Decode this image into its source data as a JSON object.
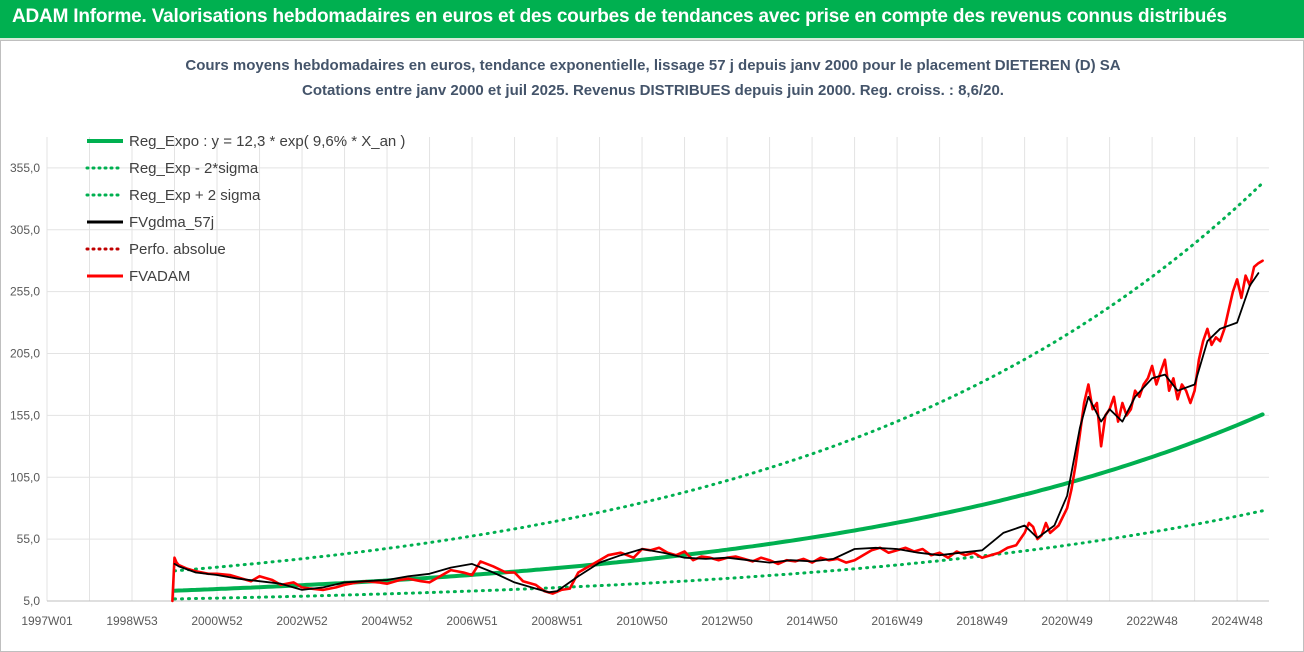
{
  "banner": {
    "text": "ADAM Informe. Valorisations hebdomadaires en euros et des courbes de tendances avec prise en compte des revenus connus distribués"
  },
  "chart_data": {
    "type": "line",
    "title": "Cours moyens hebdomadaires en euros, tendance exponentielle, lissage 57 j depuis janv 2000 pour le placement DIETEREN (D) SA",
    "subtitle": "Cotations entre janv 2000 et juil 2025. Revenus DISTRIBUES depuis juin 2000. Reg. croiss. : 8,6/20.",
    "ylim": [
      5,
      380
    ],
    "y_ticks": [
      "5,0",
      "55,0",
      "105,0",
      "155,0",
      "205,0",
      "255,0",
      "305,0",
      "355,0"
    ],
    "y_tick_values": [
      5,
      55,
      105,
      155,
      205,
      255,
      305,
      355
    ],
    "xlim": [
      1997.0,
      2025.75
    ],
    "x_ticks": [
      "1997W01",
      "1998W53",
      "2000W52",
      "2002W52",
      "2004W52",
      "2006W51",
      "2008W51",
      "2010W50",
      "2012W50",
      "2014W50",
      "2016W49",
      "2018W49",
      "2020W49",
      "2022W48",
      "2024W48"
    ],
    "x_tick_values": [
      1997.0,
      1999.0,
      2001.0,
      2003.0,
      2005.0,
      2007.0,
      2009.0,
      2011.0,
      2013.0,
      2015.0,
      2017.0,
      2019.0,
      2021.0,
      2023.0,
      2025.0
    ],
    "grid": true,
    "legend_position": "top-left",
    "exp_trend": {
      "a": 12.3,
      "rate": 0.096,
      "start": 2000.0,
      "end": 2025.6
    },
    "series": [
      {
        "name": "Reg_Expo : y = 12,3 * exp( 9,6% *  X_an )",
        "color": "#00b050",
        "style": "solid",
        "kind": "trend",
        "factor": 1.0
      },
      {
        "name": "Reg_Exp - 2*sigma",
        "color": "#00b050",
        "style": "dotted",
        "kind": "trend",
        "factor": 0.5
      },
      {
        "name": "Reg_Exp + 2 sigma",
        "color": "#00b050",
        "style": "dotted",
        "kind": "trend",
        "factor": 2.2
      },
      {
        "name": "FVgdma_57j",
        "color": "#000000",
        "style": "solid",
        "kind": "smooth",
        "x": [
          2000.0,
          2000.1,
          2000.5,
          2001.0,
          2001.5,
          2002.0,
          2002.5,
          2003.0,
          2003.5,
          2004.0,
          2004.5,
          2005.0,
          2005.5,
          2006.0,
          2006.5,
          2007.0,
          2007.5,
          2008.0,
          2008.5,
          2008.8,
          2009.0,
          2009.5,
          2010.0,
          2010.5,
          2011.0,
          2011.5,
          2012.0,
          2012.5,
          2013.0,
          2013.5,
          2014.0,
          2014.5,
          2015.0,
          2015.5,
          2016.0,
          2016.5,
          2017.0,
          2017.5,
          2018.0,
          2018.5,
          2019.0,
          2019.5,
          2020.0,
          2020.3,
          2020.7,
          2021.0,
          2021.3,
          2021.5,
          2021.8,
          2022.0,
          2022.3,
          2022.6,
          2023.0,
          2023.3,
          2023.6,
          2024.0,
          2024.3,
          2024.6,
          2025.0,
          2025.3,
          2025.5
        ],
        "y": [
          35,
          33,
          28,
          26,
          23,
          21,
          19,
          14,
          16,
          20,
          21,
          22,
          25,
          27,
          32,
          35,
          28,
          20,
          15,
          12,
          13,
          25,
          36,
          42,
          47,
          44,
          40,
          39,
          40,
          38,
          36,
          38,
          37,
          39,
          47,
          48,
          47,
          44,
          42,
          44,
          46,
          60,
          66,
          56,
          66,
          90,
          145,
          170,
          150,
          160,
          150,
          170,
          185,
          188,
          175,
          180,
          215,
          225,
          230,
          260,
          270
        ]
      },
      {
        "name": "Perfo. absolue",
        "color": "#c00000",
        "style": "dotted",
        "kind": "legend-only"
      },
      {
        "name": "FVADAM",
        "color": "#ff0000",
        "style": "solid",
        "kind": "price",
        "x": [
          1999.95,
          2000.0,
          2000.05,
          2000.1,
          2000.3,
          2000.5,
          2000.8,
          2001.0,
          2001.3,
          2001.5,
          2001.8,
          2002.0,
          2002.3,
          2002.5,
          2002.8,
          2003.0,
          2003.2,
          2003.5,
          2003.8,
          2004.0,
          2004.3,
          2004.5,
          2004.8,
          2005.0,
          2005.3,
          2005.5,
          2005.8,
          2006.0,
          2006.3,
          2006.5,
          2006.8,
          2007.0,
          2007.2,
          2007.5,
          2007.8,
          2008.0,
          2008.2,
          2008.5,
          2008.7,
          2008.9,
          2009.1,
          2009.3,
          2009.5,
          2009.8,
          2010.0,
          2010.2,
          2010.5,
          2010.8,
          2011.0,
          2011.2,
          2011.4,
          2011.6,
          2011.8,
          2012.0,
          2012.2,
          2012.4,
          2012.6,
          2012.8,
          2013.0,
          2013.2,
          2013.4,
          2013.6,
          2013.8,
          2014.0,
          2014.2,
          2014.4,
          2014.6,
          2014.8,
          2015.0,
          2015.2,
          2015.4,
          2015.6,
          2015.8,
          2016.0,
          2016.2,
          2016.4,
          2016.6,
          2016.8,
          2017.0,
          2017.2,
          2017.4,
          2017.6,
          2017.8,
          2018.0,
          2018.2,
          2018.4,
          2018.6,
          2018.8,
          2019.0,
          2019.2,
          2019.4,
          2019.6,
          2019.8,
          2020.0,
          2020.1,
          2020.2,
          2020.3,
          2020.4,
          2020.5,
          2020.6,
          2020.8,
          2021.0,
          2021.1,
          2021.2,
          2021.3,
          2021.4,
          2021.5,
          2021.6,
          2021.7,
          2021.8,
          2021.9,
          2022.0,
          2022.1,
          2022.2,
          2022.3,
          2022.4,
          2022.5,
          2022.6,
          2022.7,
          2022.8,
          2022.9,
          2023.0,
          2023.1,
          2023.2,
          2023.3,
          2023.4,
          2023.5,
          2023.6,
          2023.7,
          2023.8,
          2023.9,
          2024.0,
          2024.1,
          2024.2,
          2024.3,
          2024.4,
          2024.5,
          2024.6,
          2024.7,
          2024.8,
          2024.9,
          2025.0,
          2025.1,
          2025.2,
          2025.3,
          2025.4,
          2025.5,
          2025.6
        ],
        "y": [
          5,
          40,
          36,
          34,
          31,
          29,
          27,
          27,
          26,
          24,
          21,
          25,
          22,
          18,
          20,
          16,
          15,
          14,
          16,
          18,
          20,
          21,
          20,
          19,
          22,
          23,
          21,
          20,
          26,
          30,
          28,
          26,
          37,
          33,
          28,
          28,
          21,
          18,
          13,
          11,
          14,
          15,
          28,
          34,
          38,
          42,
          44,
          40,
          47,
          46,
          48,
          44,
          42,
          45,
          38,
          41,
          40,
          38,
          40,
          41,
          39,
          37,
          40,
          38,
          35,
          38,
          37,
          39,
          36,
          40,
          38,
          39,
          36,
          38,
          42,
          46,
          48,
          44,
          46,
          48,
          45,
          47,
          42,
          44,
          40,
          45,
          42,
          44,
          40,
          42,
          44,
          48,
          50,
          60,
          68,
          65,
          55,
          58,
          68,
          60,
          66,
          80,
          95,
          115,
          140,
          165,
          180,
          160,
          165,
          130,
          155,
          160,
          170,
          150,
          165,
          155,
          160,
          175,
          170,
          180,
          185,
          195,
          180,
          190,
          200,
          175,
          185,
          168,
          180,
          175,
          165,
          175,
          200,
          215,
          225,
          212,
          218,
          215,
          225,
          240,
          255,
          265,
          250,
          268,
          260,
          275,
          278,
          280
        ]
      }
    ]
  }
}
